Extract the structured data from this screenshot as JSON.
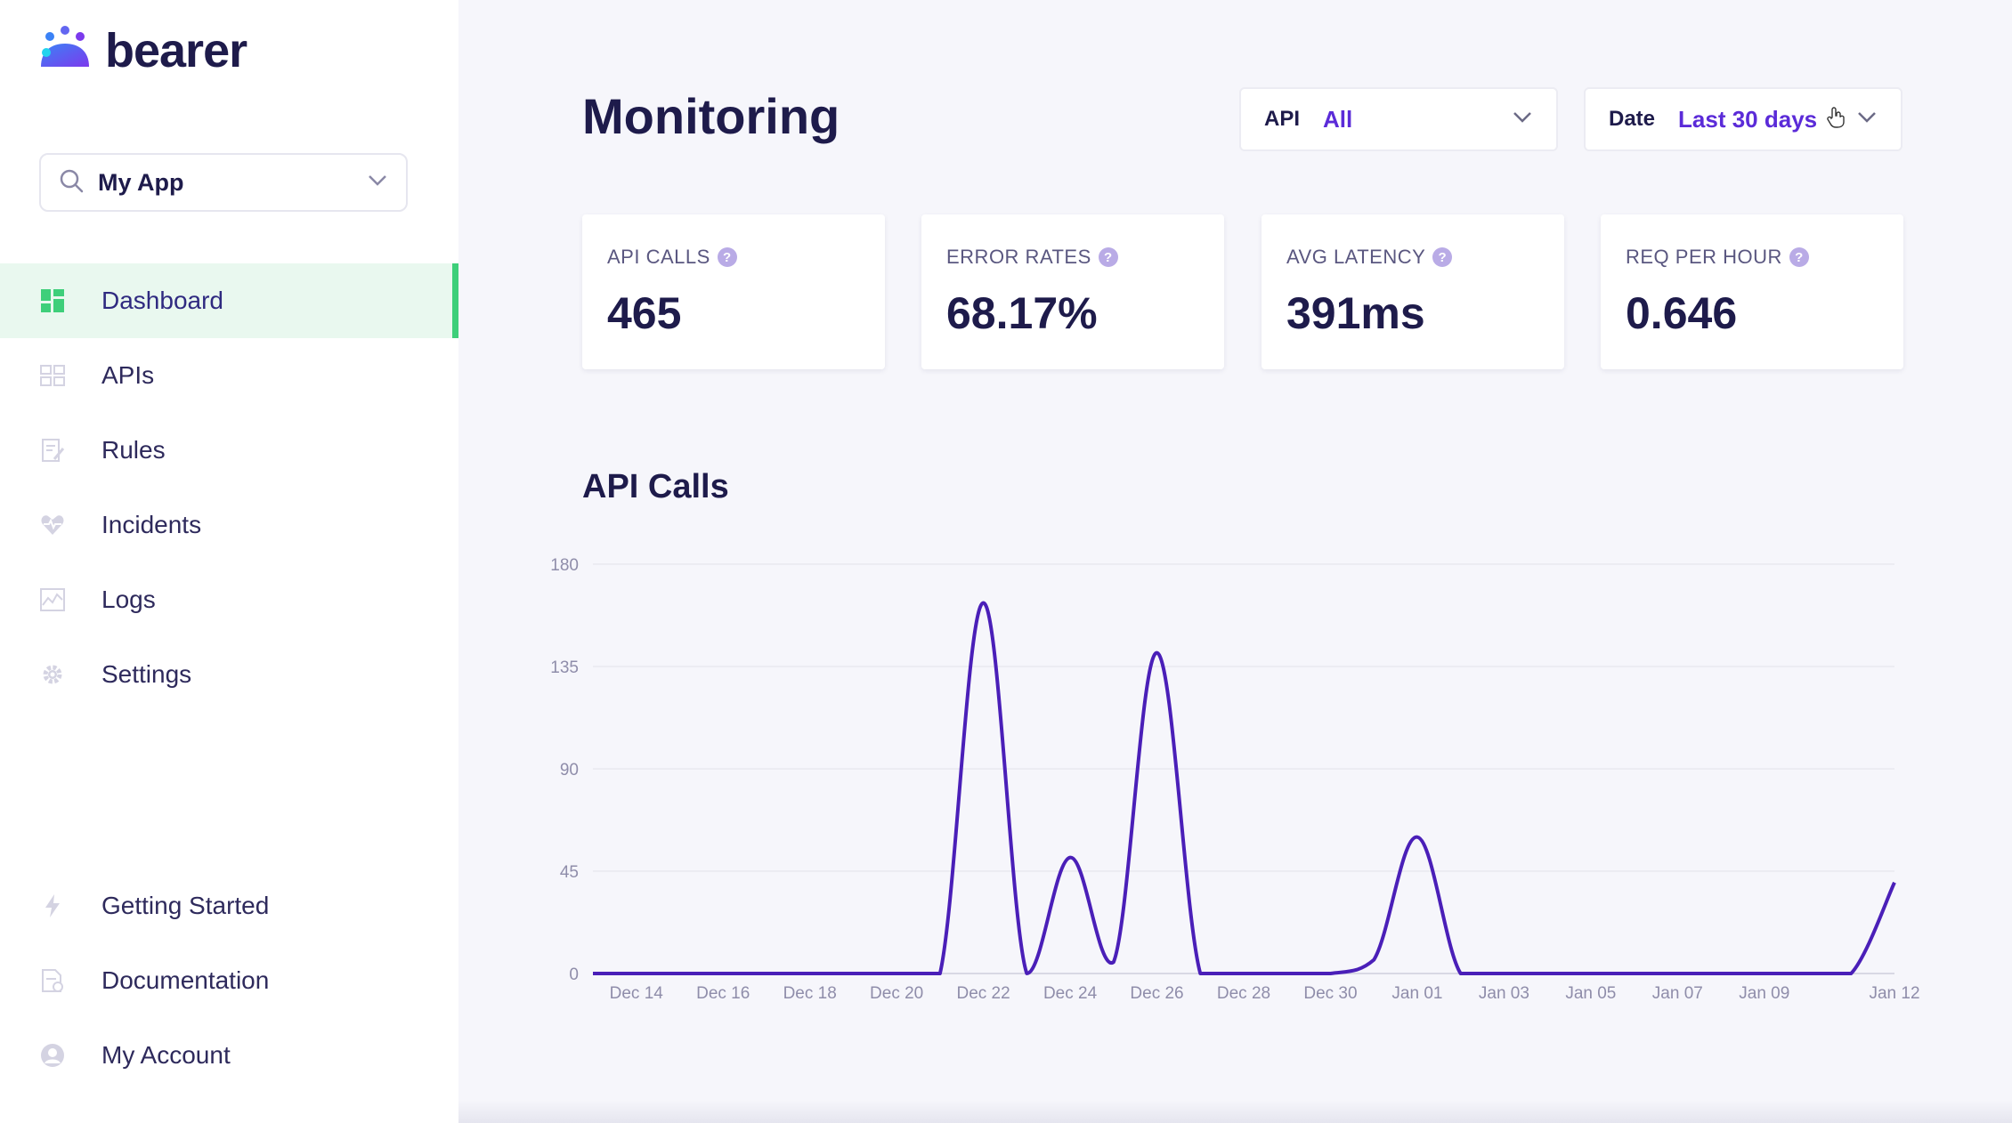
{
  "brand": {
    "name": "bearer"
  },
  "app_selector": {
    "value": "My App"
  },
  "nav": {
    "items": [
      {
        "label": "Dashboard",
        "icon": "dashboard-icon",
        "active": true
      },
      {
        "label": "APIs",
        "icon": "apis-icon"
      },
      {
        "label": "Rules",
        "icon": "rules-icon"
      },
      {
        "label": "Incidents",
        "icon": "heart-icon"
      },
      {
        "label": "Logs",
        "icon": "logs-icon"
      },
      {
        "label": "Settings",
        "icon": "gear-icon"
      }
    ],
    "bottom_items": [
      {
        "label": "Getting Started",
        "icon": "lightning-icon"
      },
      {
        "label": "Documentation",
        "icon": "document-icon"
      },
      {
        "label": "My Account",
        "icon": "user-icon"
      }
    ]
  },
  "header": {
    "title": "Monitoring",
    "api_filter": {
      "label": "API",
      "value": "All"
    },
    "date_filter": {
      "label": "Date",
      "value": "Last 30 days"
    }
  },
  "metrics": [
    {
      "label": "API CALLS",
      "value": "465"
    },
    {
      "label": "ERROR RATES",
      "value": "68.17%"
    },
    {
      "label": "AVG LATENCY",
      "value": "391ms"
    },
    {
      "label": "REQ PER HOUR",
      "value": "0.646"
    }
  ],
  "colors": {
    "accent": "#5b2bd8",
    "line": "#4a1fb8",
    "active_green": "#3ecf7a",
    "active_bg": "#e9f8ef"
  },
  "chart_data": {
    "type": "line",
    "title": "API Calls",
    "ylim": [
      0,
      180
    ],
    "yticks": [
      0,
      45,
      90,
      135,
      180
    ],
    "xtick_labels": [
      "Dec 14",
      "Dec 16",
      "Dec 18",
      "Dec 20",
      "Dec 22",
      "Dec 24",
      "Dec 26",
      "Dec 28",
      "Dec 30",
      "Jan 01",
      "Jan 03",
      "Jan 05",
      "Jan 07",
      "Jan 09",
      "Jan 12"
    ],
    "grid": true,
    "x": [
      "Dec 13",
      "Dec 14",
      "Dec 15",
      "Dec 16",
      "Dec 17",
      "Dec 18",
      "Dec 19",
      "Dec 20",
      "Dec 21",
      "Dec 22",
      "Dec 23",
      "Dec 24",
      "Dec 25",
      "Dec 26",
      "Dec 27",
      "Dec 28",
      "Dec 29",
      "Dec 30",
      "Dec 31",
      "Jan 01",
      "Jan 02",
      "Jan 03",
      "Jan 04",
      "Jan 05",
      "Jan 06",
      "Jan 07",
      "Jan 08",
      "Jan 09",
      "Jan 10",
      "Jan 11",
      "Jan 12"
    ],
    "series": [
      {
        "values": [
          0,
          0,
          0,
          0,
          0,
          0,
          0,
          0,
          0,
          163,
          0,
          51,
          5,
          141,
          0,
          0,
          0,
          0,
          6,
          60,
          0,
          0,
          0,
          0,
          0,
          0,
          0,
          0,
          0,
          0,
          40
        ]
      }
    ]
  }
}
